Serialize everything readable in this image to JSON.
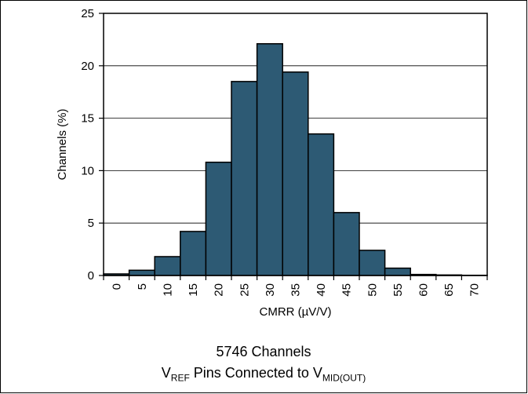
{
  "chart_data": {
    "type": "bar",
    "categories": [
      "0",
      "5",
      "10",
      "15",
      "20",
      "25",
      "30",
      "35",
      "40",
      "45",
      "50",
      "55",
      "60",
      "65",
      "70"
    ],
    "values": [
      0.15,
      0.5,
      1.8,
      4.2,
      10.8,
      18.5,
      22.1,
      19.4,
      13.5,
      6.0,
      2.4,
      0.7,
      0.1,
      0.05,
      0.02
    ],
    "title": "",
    "xlabel": "CMRR (µV/V)",
    "ylabel": "Channels (%)",
    "ylim": [
      0,
      25
    ],
    "yticks": [
      0,
      5,
      10,
      15,
      20,
      25
    ],
    "grid": true,
    "bar_color": "#2d5a74"
  },
  "caption": {
    "line1": "5746 Channels",
    "line2_v": "V",
    "line2_ref": "REF",
    "line2_mid": " Pins Connected to V",
    "line2_sub": "MID(OUT)"
  }
}
